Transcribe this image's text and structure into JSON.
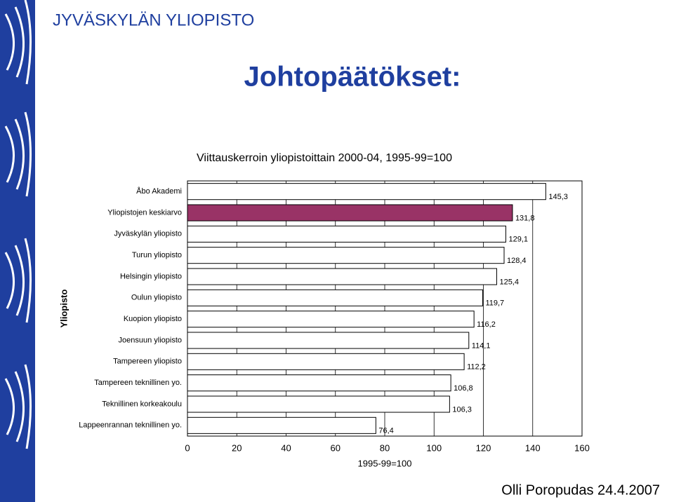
{
  "header": "JYVÄSKYLÄN YLIOPISTO",
  "title": "Johtopäätökset:",
  "footer": "Olli Poropudas 24.4.2007",
  "chart_data": {
    "type": "bar",
    "orientation": "horizontal",
    "title": "Viittauskerroin yliopistoittain 2000-04, 1995-99=100",
    "y_label": "Yliopisto",
    "x_label": "1995-99=100",
    "categories": [
      "Åbo Akademi",
      "Yliopistojen keskiarvo",
      "Jyväskylän yliopisto",
      "Turun yliopisto",
      "Helsingin yliopisto",
      "Oulun yliopisto",
      "Kuopion yliopisto",
      "Joensuun yliopisto",
      "Tampereen yliopisto",
      "Tampereen teknillinen yo.",
      "Teknillinen korkeakoulu",
      "Lappeenrannan teknillinen yo."
    ],
    "values": [
      145.3,
      131.8,
      129.1,
      128.4,
      125.4,
      119.7,
      116.2,
      114.1,
      112.2,
      106.8,
      106.3,
      76.4
    ],
    "value_labels": [
      "145,3",
      "131,8",
      "129,1",
      "128,4",
      "125,4",
      "119,7",
      "116,2",
      "114,1",
      "112,2",
      "106,8",
      "106,3",
      "76,4"
    ],
    "colors": [
      "#ffffff",
      "#993366",
      "#ffffff",
      "#ffffff",
      "#ffffff",
      "#ffffff",
      "#ffffff",
      "#ffffff",
      "#ffffff",
      "#ffffff",
      "#ffffff",
      "#ffffff"
    ],
    "xlim": [
      0,
      160
    ],
    "xticks": [
      0,
      20,
      40,
      60,
      80,
      100,
      120,
      140,
      160
    ],
    "grid": true
  }
}
